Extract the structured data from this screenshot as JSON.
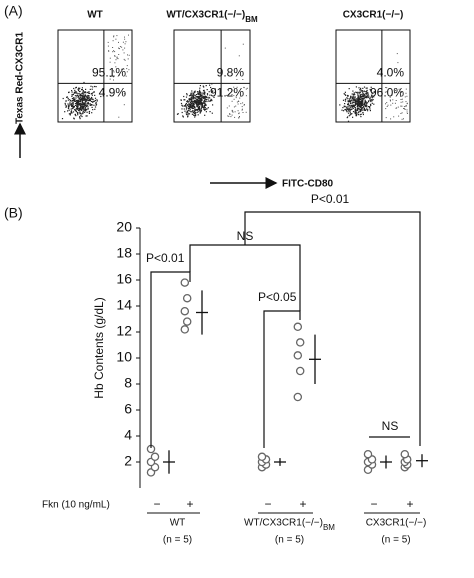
{
  "panel_a": {
    "label": "(A)",
    "y_label": "Texas Red-CX3CR1",
    "x_label": "FITC-CD80",
    "plots": [
      {
        "title": "WT",
        "quadrant_values": [
          95.1,
          4.9
        ],
        "quadrant_labels": [
          "95.1%",
          "4.9%"
        ]
      },
      {
        "title": "WT/CX3CR1(−/−)",
        "title_sub": "BM",
        "quadrant_values": [
          9.8,
          91.2
        ],
        "quadrant_labels": [
          "9.8%",
          "91.2%"
        ]
      },
      {
        "title": "CX3CR1(−/−)",
        "quadrant_values": [
          4.0,
          96.0
        ],
        "quadrant_labels": [
          "4.0%",
          "96.0%"
        ]
      }
    ]
  },
  "chart_data": {
    "type": "dot",
    "panel_label": "(B)",
    "y_label": "Hb Contents (g/dL)",
    "ylim": [
      0,
      20
    ],
    "yticks": [
      2,
      4,
      6,
      8,
      10,
      12,
      14,
      16,
      18,
      20
    ],
    "treatment_label": "Fkn (10 ng/mL)",
    "treatment_levels": [
      "−",
      "+"
    ],
    "groups": [
      {
        "name": "WT",
        "n_label": "(n = 5)",
        "conditions": [
          {
            "values": [
              1.2,
              1.6,
              2.0,
              2.4,
              3.0
            ],
            "mean": 2.0,
            "sd": 0.9
          },
          {
            "values": [
              12.2,
              12.8,
              13.6,
              14.6,
              15.8
            ],
            "mean": 13.5,
            "sd": 1.7
          }
        ]
      },
      {
        "name": "WT/CX3CR1(−/−)",
        "name_sub": "BM",
        "n_label": "(n = 5)",
        "conditions": [
          {
            "values": [
              1.6,
              1.8,
              2.0,
              2.2,
              2.4
            ],
            "mean": 2.0,
            "sd": 0.3
          },
          {
            "values": [
              7.0,
              9.0,
              10.2,
              11.2,
              12.4
            ],
            "mean": 9.9,
            "sd": 1.9
          }
        ]
      },
      {
        "name": "CX3CR1(−/−)",
        "n_label": "(n = 5)",
        "conditions": [
          {
            "values": [
              1.4,
              1.8,
              2.0,
              2.2,
              2.6
            ],
            "mean": 2.0,
            "sd": 0.5
          },
          {
            "values": [
              1.6,
              1.8,
              2.0,
              2.2,
              2.6
            ],
            "mean": 2.1,
            "sd": 0.5
          }
        ]
      }
    ],
    "comparisons": [
      "P<0.01",
      "NS",
      "P<0.05",
      "P<0.01",
      "NS"
    ]
  }
}
